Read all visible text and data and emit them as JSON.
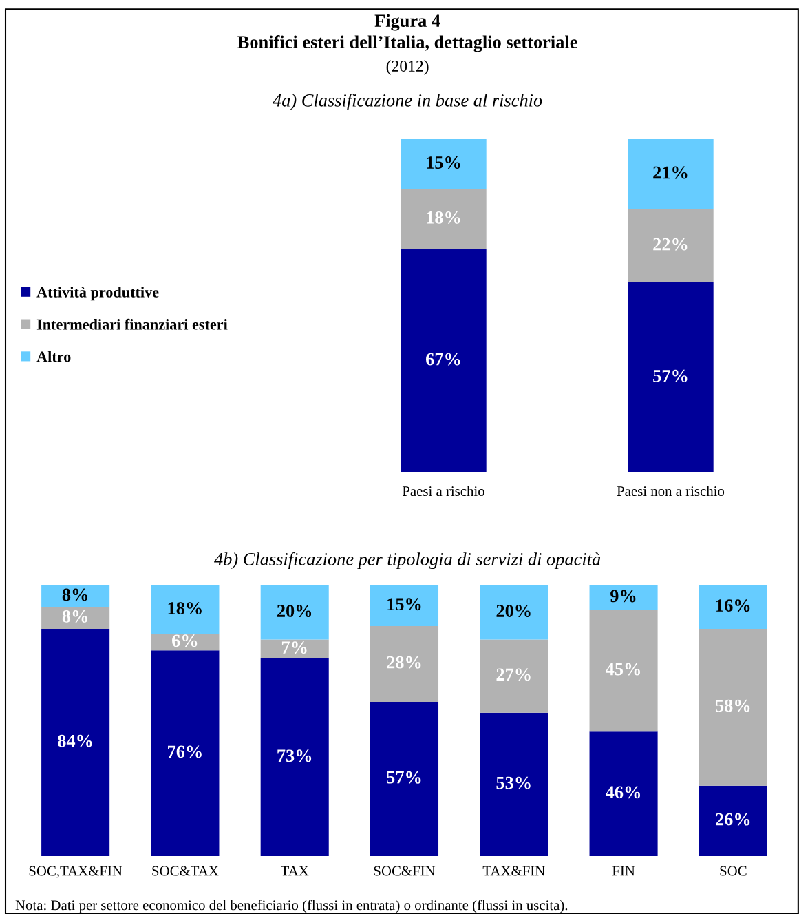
{
  "chart_data": [
    {
      "type": "bar",
      "title": "Figura 4\nBonifici esteri dell’Italia, dettaglio settoriale",
      "subtitle": "(2012)",
      "annotations": [
        "4a) Classificazione in base al rischio"
      ],
      "categories": [
        "Paesi a rischio",
        "Paesi non a rischio"
      ],
      "stacked": true,
      "legend": "left",
      "tick_labels": "x",
      "series": [
        {
          "name": "Attività produttive",
          "color": "#000099",
          "values": [
            67,
            57
          ],
          "value_labels": [
            "67%",
            "57%"
          ]
        },
        {
          "name": "Intermediari finanziari esteri",
          "color": "#b2b2b2",
          "values": [
            18,
            22
          ],
          "value_labels": [
            "18%",
            "22%"
          ]
        },
        {
          "name": "Altro",
          "color": "#66ccff",
          "values": [
            15,
            21
          ],
          "value_labels": [
            "15%",
            "21%"
          ]
        }
      ]
    },
    {
      "type": "bar",
      "title": "4b) Classificazione per tipologia di servizi di opacità",
      "annotations": [
        "Nota: Dati per settore economico del beneficiario (flussi in entrata) o ordinante (flussi in uscita)."
      ],
      "categories": [
        "SOC,TAX&FIN",
        "SOC&TAX",
        "TAX",
        "SOC&FIN",
        "TAX&FIN",
        "FIN",
        "SOC"
      ],
      "stacked": true,
      "tick_labels": "x",
      "series": [
        {
          "color": "#000099",
          "values": [
            84,
            76,
            73,
            57,
            53,
            46,
            26
          ],
          "value_labels": [
            "84%",
            "76%",
            "73%",
            "57%",
            "53%",
            "46%",
            "26%"
          ]
        },
        {
          "color": "#b2b2b2",
          "values": [
            8,
            6,
            7,
            28,
            27,
            45,
            58
          ],
          "value_labels": [
            "8%",
            "6%",
            "7%",
            "28%",
            "27%",
            "45%",
            "58%"
          ]
        },
        {
          "color": "#66ccff",
          "values": [
            8,
            18,
            20,
            15,
            20,
            9,
            16
          ],
          "value_labels": [
            "8%",
            "18%",
            "20%",
            "15%",
            "20%",
            "9%",
            "16%"
          ]
        }
      ]
    }
  ]
}
